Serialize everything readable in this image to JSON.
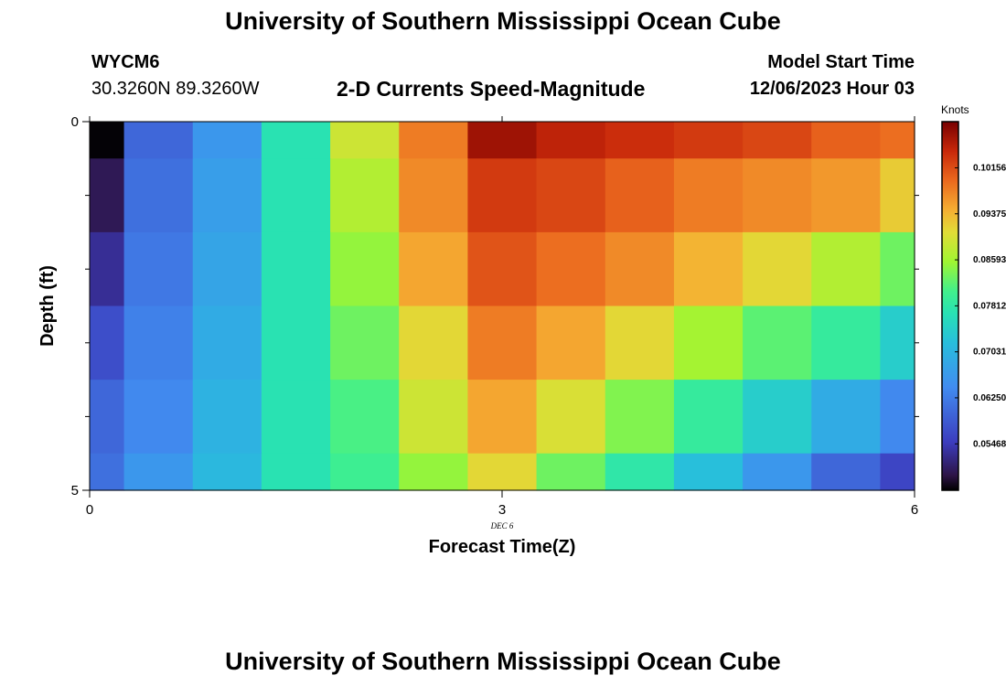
{
  "header": {
    "title": "University of Southern Mississippi Ocean Cube",
    "station_id": "WYCM6",
    "coordinates": "30.3260N  89.3260W",
    "subtitle": "2-D Currents Speed-Magnitude",
    "model_start_label": "Model Start Time",
    "model_start_value": "12/06/2023 Hour 03"
  },
  "footer": {
    "title": "University of Southern Mississippi Ocean Cube"
  },
  "chart_data": {
    "type": "heatmap",
    "title": "2-D Currents Speed-Magnitude",
    "xlabel": "Forecast Time(Z)",
    "ylabel": "Depth (ft)",
    "x_ticks": [
      "0",
      "3",
      "6"
    ],
    "y_ticks": [
      "0",
      "5"
    ],
    "date_annotation": "DEC 6",
    "xlim": [
      0,
      6
    ],
    "ylim": [
      0,
      5
    ],
    "x_edges": [
      0,
      0.25,
      0.75,
      1.25,
      1.75,
      2.25,
      2.75,
      3.25,
      3.75,
      4.25,
      4.75,
      5.25,
      5.75,
      6
    ],
    "y_edges": [
      0,
      0.5,
      1.5,
      2.5,
      3.5,
      4.5,
      5
    ],
    "values": [
      [
        0.047,
        0.06,
        0.066,
        0.077,
        0.089,
        0.098,
        0.107,
        0.105,
        0.104,
        0.103,
        0.102,
        0.1,
        0.099
      ],
      [
        0.05,
        0.061,
        0.067,
        0.077,
        0.087,
        0.097,
        0.103,
        0.102,
        0.1,
        0.098,
        0.097,
        0.096,
        0.092
      ],
      [
        0.053,
        0.062,
        0.068,
        0.077,
        0.085,
        0.095,
        0.101,
        0.099,
        0.097,
        0.094,
        0.091,
        0.087,
        0.083
      ],
      [
        0.057,
        0.063,
        0.069,
        0.077,
        0.083,
        0.091,
        0.098,
        0.095,
        0.091,
        0.086,
        0.082,
        0.079,
        0.074
      ],
      [
        0.06,
        0.064,
        0.07,
        0.077,
        0.081,
        0.089,
        0.095,
        0.09,
        0.084,
        0.079,
        0.074,
        0.069,
        0.064
      ],
      [
        0.061,
        0.066,
        0.071,
        0.077,
        0.08,
        0.085,
        0.091,
        0.083,
        0.078,
        0.072,
        0.066,
        0.06,
        0.056
      ]
    ],
    "colorbar": {
      "label": "Knots",
      "min": 0.0468,
      "max": 0.1094,
      "ticks": [
        "0.10156",
        "0.09375",
        "0.08593",
        "0.07812",
        "0.07031",
        "0.06250",
        "0.05468"
      ],
      "tick_values": [
        0.10156,
        0.09375,
        0.08593,
        0.07812,
        0.07031,
        0.0625,
        0.05468
      ]
    }
  }
}
